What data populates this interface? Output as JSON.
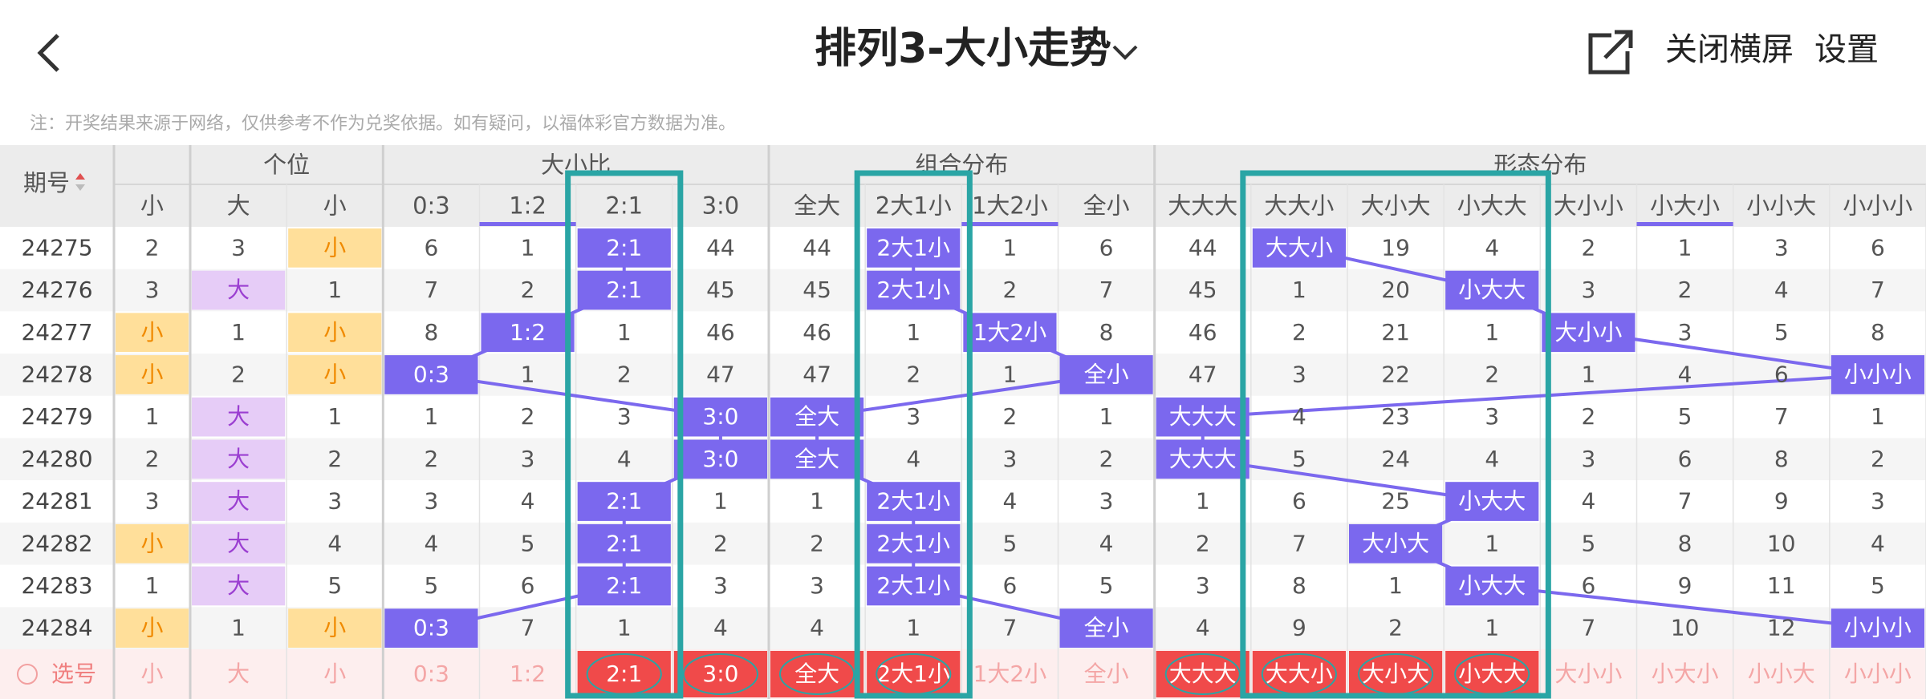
{
  "header": {
    "title": "排列3-大小走势",
    "actions": [
      "关闭横屏",
      "设置"
    ]
  },
  "note": "注：开奖结果来源于网络，仅供参考不作为兑奖依据。如有疑问，以福体彩官方数据为准。",
  "table": {
    "period_header": "期号",
    "groups": [
      {
        "columns": [
          "小"
        ]
      },
      {
        "label": "个位",
        "columns": [
          "大",
          "小"
        ]
      },
      {
        "label": "大小比",
        "columns": [
          "0:3",
          "1:2",
          "2:1",
          "3:0"
        ]
      },
      {
        "label": "组合分布",
        "columns": [
          "全大",
          "2大1小",
          "1大2小",
          "全小"
        ]
      },
      {
        "label": "形态分布",
        "columns": [
          "大大大",
          "大大小",
          "大小大",
          "小大大",
          "大小小",
          "小大小",
          "小小大",
          "小小小"
        ]
      }
    ],
    "rows": [
      {
        "period": "24275",
        "cells": [
          2,
          3,
          "小",
          6,
          1,
          "2:1",
          44,
          44,
          "2大1小",
          1,
          6,
          44,
          "大大小",
          19,
          4,
          2,
          1,
          3,
          6
        ]
      },
      {
        "period": "24276",
        "cells": [
          3,
          "大",
          1,
          7,
          2,
          "2:1",
          45,
          45,
          "2大1小",
          2,
          7,
          45,
          1,
          20,
          "小大大",
          3,
          2,
          4,
          7
        ]
      },
      {
        "period": "24277",
        "cells": [
          "小",
          1,
          "小",
          8,
          "1:2",
          1,
          46,
          46,
          1,
          "1大2小",
          8,
          46,
          2,
          21,
          1,
          "大小小",
          3,
          5,
          8
        ]
      },
      {
        "period": "24278",
        "cells": [
          "小",
          2,
          "小",
          "0:3",
          1,
          2,
          47,
          47,
          2,
          1,
          "全小",
          47,
          3,
          22,
          2,
          1,
          4,
          6,
          "小小小"
        ]
      },
      {
        "period": "24279",
        "cells": [
          1,
          "大",
          1,
          1,
          2,
          3,
          "3:0",
          "全大",
          3,
          2,
          1,
          "大大大",
          4,
          23,
          3,
          2,
          5,
          7,
          1
        ]
      },
      {
        "period": "24280",
        "cells": [
          2,
          "大",
          2,
          2,
          3,
          4,
          "3:0",
          "全大",
          4,
          3,
          2,
          "大大大",
          5,
          24,
          4,
          3,
          6,
          8,
          2
        ]
      },
      {
        "period": "24281",
        "cells": [
          3,
          "大",
          3,
          3,
          4,
          "2:1",
          1,
          1,
          "2大1小",
          4,
          3,
          1,
          6,
          25,
          "小大大",
          4,
          7,
          9,
          3
        ]
      },
      {
        "period": "24282",
        "cells": [
          "小",
          "大",
          4,
          4,
          5,
          "2:1",
          2,
          2,
          "2大1小",
          5,
          4,
          2,
          7,
          "大小大",
          1,
          5,
          8,
          10,
          4
        ]
      },
      {
        "period": "24283",
        "cells": [
          1,
          "大",
          5,
          5,
          6,
          "2:1",
          3,
          3,
          "2大1小",
          6,
          5,
          3,
          8,
          1,
          "小大大",
          6,
          9,
          11,
          5
        ]
      },
      {
        "period": "24284",
        "cells": [
          "小",
          1,
          "小",
          "0:3",
          7,
          1,
          4,
          4,
          1,
          7,
          "全小",
          4,
          9,
          2,
          1,
          7,
          10,
          12,
          "小小小"
        ]
      }
    ],
    "select": {
      "label": "选号",
      "cells": [
        "小",
        "大",
        "小",
        "0:3",
        "1:2",
        "2:1",
        "3:0",
        "全大",
        "2大1小",
        "1大2小",
        "全小",
        "大大大",
        "大大小",
        "大小大",
        "小大大",
        "大小小",
        "小大小",
        "小小大",
        "小小小"
      ],
      "selected": [
        false,
        false,
        false,
        false,
        false,
        true,
        true,
        true,
        true,
        false,
        false,
        true,
        true,
        true,
        true,
        false,
        false,
        false,
        false
      ]
    }
  }
}
